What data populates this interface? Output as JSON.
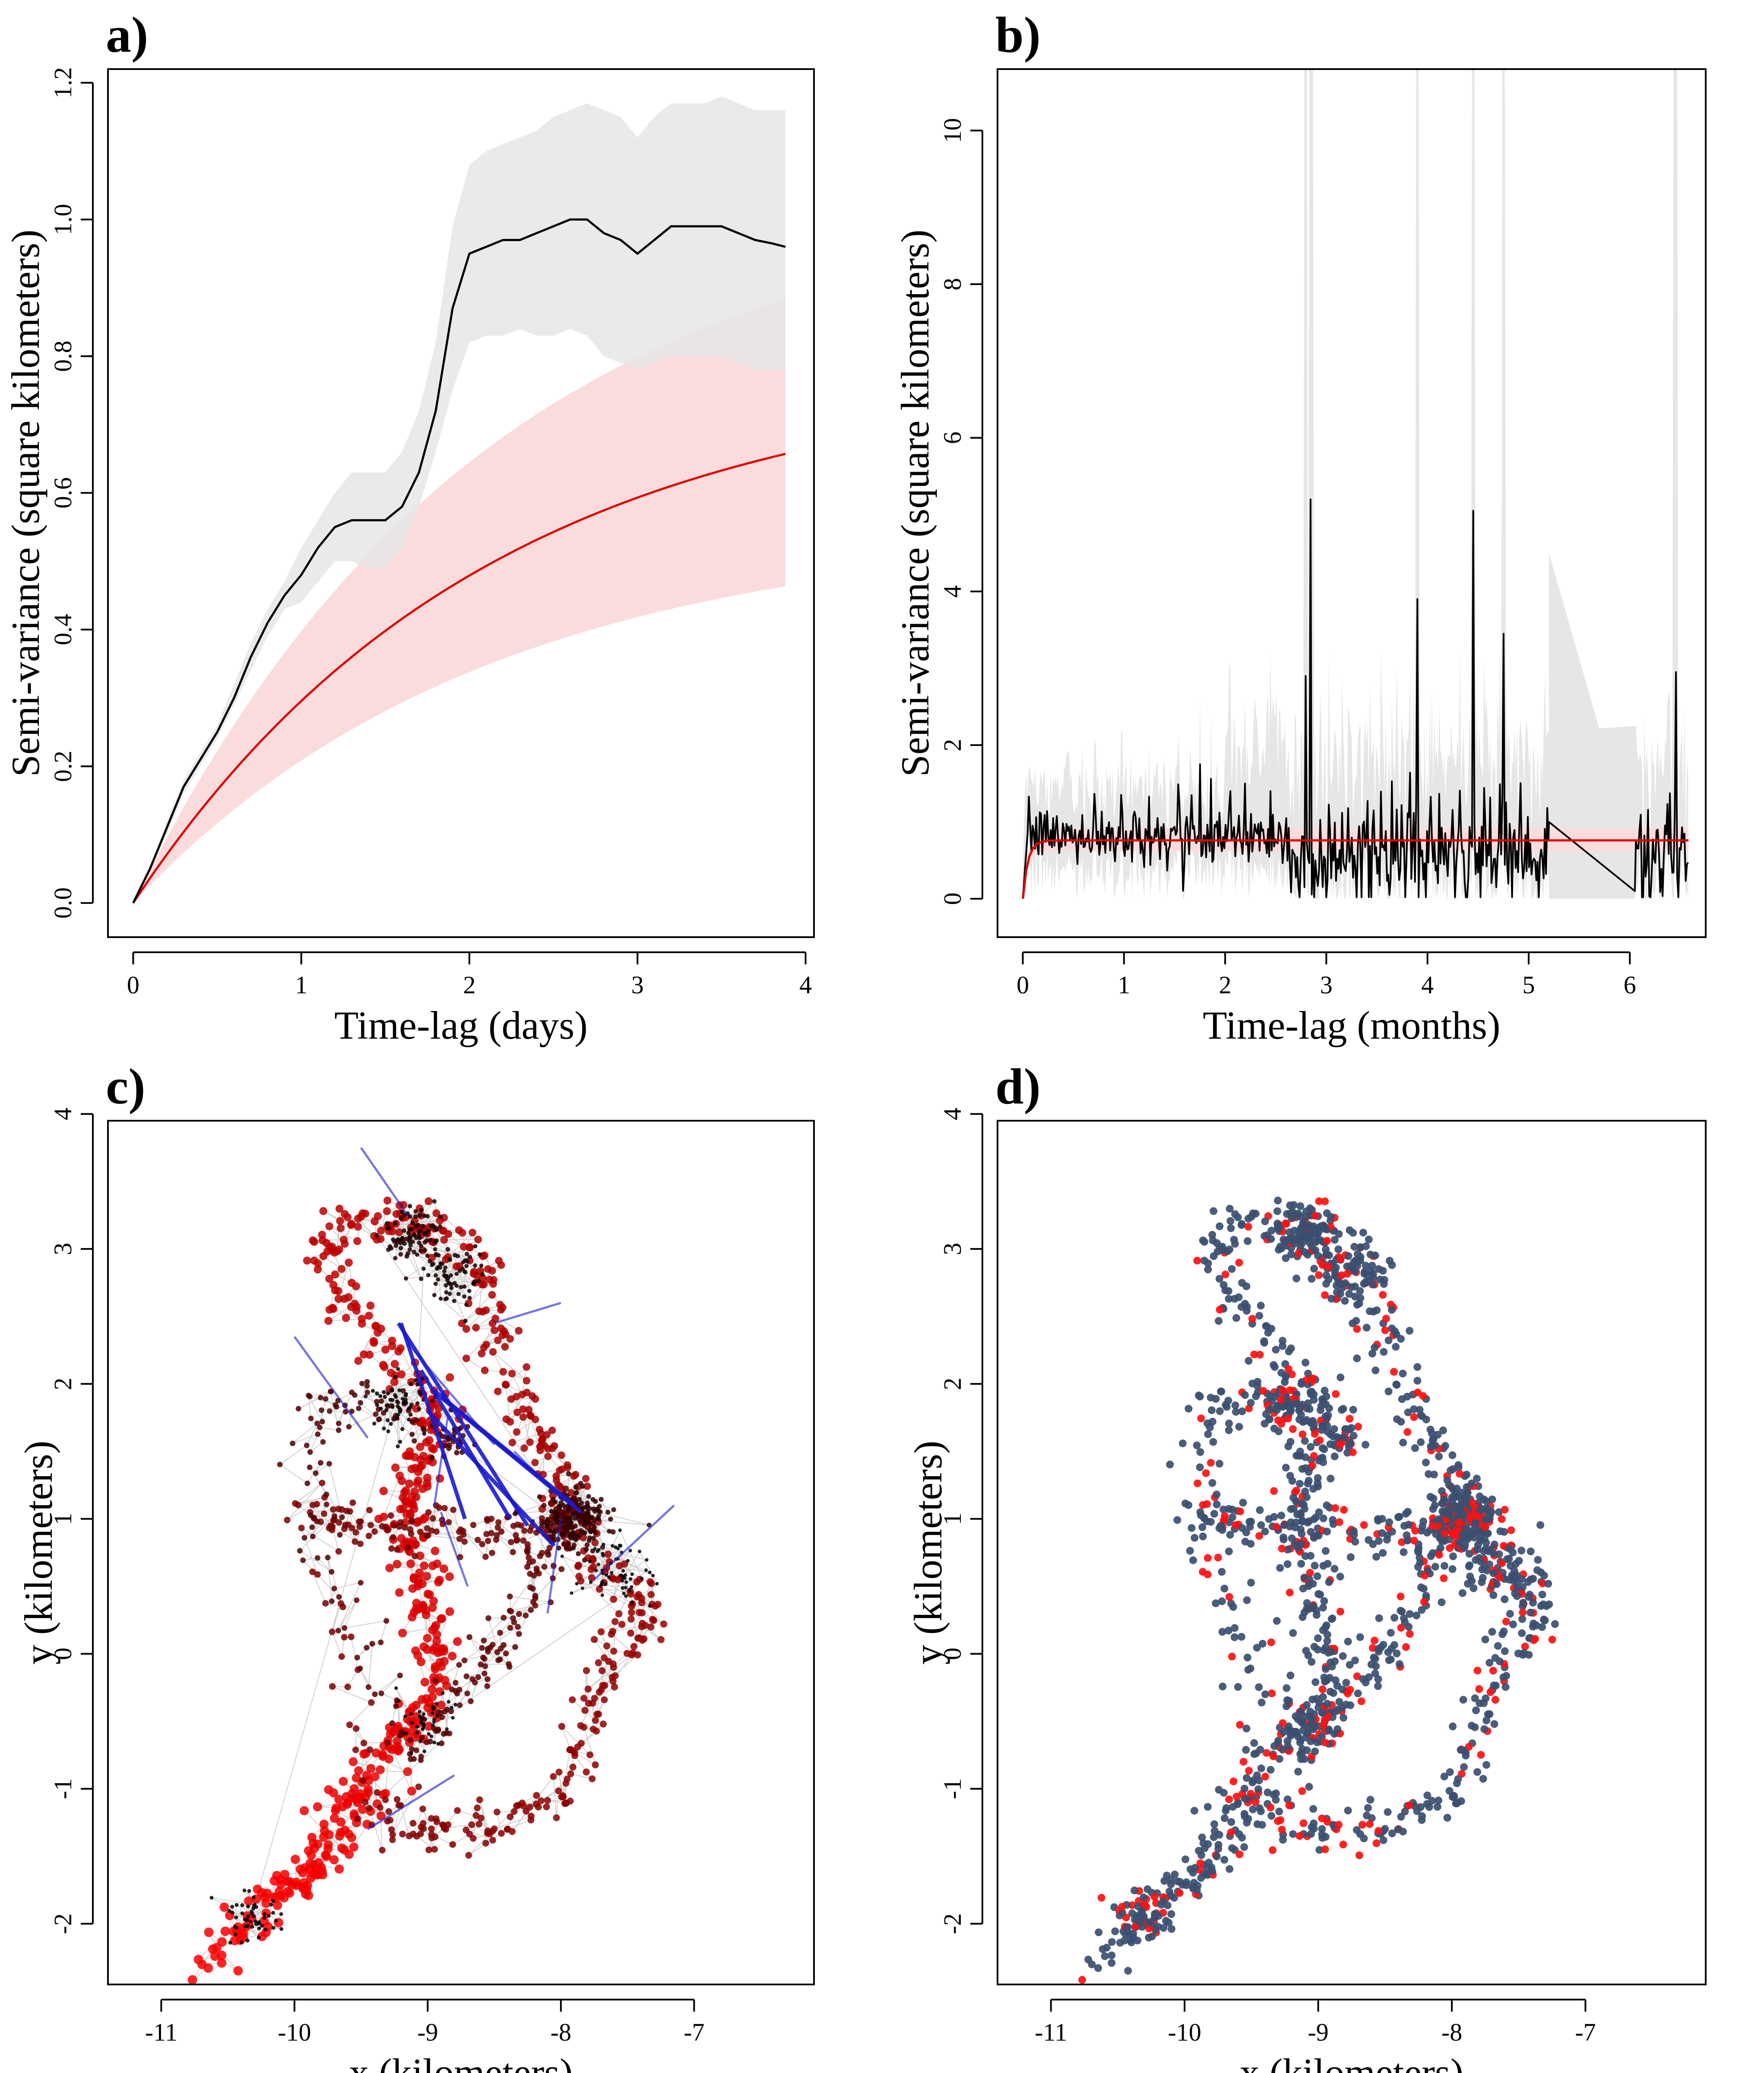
{
  "chart_data": [
    {
      "id": "a",
      "panel_label": "a)",
      "type": "line",
      "title": "",
      "xlabel": "Time-lag (days)",
      "ylabel": "Semi-variance (square kilometers)",
      "xlim": [
        -0.15,
        4.05
      ],
      "ylim": [
        -0.05,
        1.22
      ],
      "xticks": [
        0,
        1,
        2,
        3,
        4
      ],
      "yticks": [
        0.0,
        0.2,
        0.4,
        0.6,
        0.8,
        1.0,
        1.2
      ],
      "ytick_labels": [
        "0.0",
        "0.2",
        "0.4",
        "0.6",
        "0.8",
        "1.0",
        "1.2"
      ],
      "grid": false,
      "series": [
        {
          "style": "empirical",
          "color": "#000000",
          "band_color": "#e6e6e6",
          "x": [
            0,
            0.1,
            0.2,
            0.3,
            0.4,
            0.5,
            0.6,
            0.7,
            0.8,
            0.9,
            1.0,
            1.1,
            1.2,
            1.3,
            1.4,
            1.5,
            1.6,
            1.7,
            1.8,
            1.9,
            2.0,
            2.1,
            2.2,
            2.3,
            2.4,
            2.5,
            2.6,
            2.7,
            2.8,
            2.9,
            3.0,
            3.1,
            3.2,
            3.3,
            3.4,
            3.5,
            3.6,
            3.7,
            3.8,
            3.88
          ],
          "y": [
            0,
            0.05,
            0.11,
            0.17,
            0.21,
            0.25,
            0.3,
            0.36,
            0.41,
            0.45,
            0.48,
            0.52,
            0.55,
            0.56,
            0.56,
            0.56,
            0.58,
            0.63,
            0.72,
            0.87,
            0.95,
            0.96,
            0.97,
            0.97,
            0.98,
            0.99,
            1.0,
            1.0,
            0.98,
            0.97,
            0.95,
            0.97,
            0.99,
            0.99,
            0.99,
            0.99,
            0.98,
            0.97,
            0.965,
            0.96
          ],
          "lower": [
            0,
            0.05,
            0.1,
            0.16,
            0.2,
            0.24,
            0.29,
            0.34,
            0.39,
            0.43,
            0.44,
            0.47,
            0.5,
            0.5,
            0.49,
            0.49,
            0.52,
            0.58,
            0.66,
            0.75,
            0.82,
            0.83,
            0.83,
            0.84,
            0.83,
            0.83,
            0.84,
            0.83,
            0.8,
            0.79,
            0.78,
            0.79,
            0.8,
            0.8,
            0.8,
            0.8,
            0.79,
            0.78,
            0.78,
            0.78
          ],
          "upper": [
            0,
            0.05,
            0.12,
            0.18,
            0.22,
            0.26,
            0.32,
            0.38,
            0.43,
            0.47,
            0.52,
            0.56,
            0.6,
            0.63,
            0.63,
            0.63,
            0.66,
            0.72,
            0.82,
            0.99,
            1.08,
            1.1,
            1.11,
            1.12,
            1.13,
            1.15,
            1.16,
            1.17,
            1.16,
            1.15,
            1.12,
            1.15,
            1.17,
            1.17,
            1.17,
            1.18,
            1.17,
            1.16,
            1.16,
            1.16
          ]
        },
        {
          "style": "model",
          "color": "#e00000",
          "band_color": "#fbdcdc",
          "function": "exponential",
          "sill": 0.78,
          "tau": 2.1,
          "sill_lower": 0.55,
          "sill_upper": 1.05,
          "xmax": 3.88
        }
      ]
    },
    {
      "id": "b",
      "panel_label": "b)",
      "type": "line",
      "title": "",
      "xlabel": "Time-lag (months)",
      "ylabel": "Semi-variance (square kilometers)",
      "xlim": [
        -0.25,
        6.75
      ],
      "ylim": [
        -0.5,
        10.8
      ],
      "xticks": [
        0,
        1,
        2,
        3,
        4,
        5,
        6
      ],
      "yticks": [
        0,
        2,
        4,
        6,
        8,
        10
      ],
      "ytick_labels": [
        "0",
        "2",
        "4",
        "6",
        "8",
        "10"
      ],
      "grid": false,
      "series": [
        {
          "style": "empirical_noisy",
          "color": "#000000",
          "band_color": "#e6e6e6",
          "xmax": 6.58,
          "base": 0.75,
          "spikes": [
            {
              "x": 1.75,
              "y": 1.75
            },
            {
              "x": 2.05,
              "y": 1.4
            },
            {
              "x": 2.2,
              "y": 1.5
            },
            {
              "x": 2.45,
              "y": 1.4
            },
            {
              "x": 2.8,
              "y": 2.9
            },
            {
              "x": 2.85,
              "y": 5.2
            },
            {
              "x": 3.9,
              "y": 3.9
            },
            {
              "x": 4.45,
              "y": 5.05
            },
            {
              "x": 4.75,
              "y": 3.45
            },
            {
              "x": 6.45,
              "y": 2.95
            }
          ],
          "gap": {
            "x_start": 5.2,
            "y_start": 1.0,
            "x_end": 6.05,
            "y_end": 0.1
          }
        },
        {
          "style": "model",
          "color": "#e00000",
          "band_color": "#fbdcdc",
          "function": "exponential",
          "sill": 0.76,
          "tau": 0.05,
          "sill_lower": 0.62,
          "sill_upper": 0.92,
          "xmax": 6.58
        }
      ]
    },
    {
      "id": "c",
      "panel_label": "c)",
      "type": "scatter",
      "title": "",
      "xlabel": "x (kilometers)",
      "ylabel": "y (kilometers)",
      "xlim": [
        -11.4,
        -6.1
      ],
      "ylim": [
        -2.45,
        3.95
      ],
      "xticks": [
        -11,
        -10,
        -9,
        -8,
        -7
      ],
      "yticks": [
        -2,
        -1,
        0,
        1,
        2,
        3,
        4
      ],
      "xtick_labels": [
        "-11",
        "-10",
        "-9",
        "-8",
        "-7"
      ],
      "ytick_labels": [
        "-2",
        "-1",
        "0",
        "1",
        "2",
        "3",
        "4"
      ],
      "grid": false,
      "point_color_early": "#ff0000",
      "point_color_late": "#000000",
      "link_color": "#1a1acc",
      "outlier_links": [
        {
          "x1": -9.22,
          "y1": 2.45,
          "x2": -8.25,
          "y2": 0.95
        },
        {
          "x1": -9.2,
          "y1": 2.45,
          "x2": -8.72,
          "y2": 1.0
        },
        {
          "x1": -9.05,
          "y1": 2.1,
          "x2": -8.38,
          "y2": 1.0
        },
        {
          "x1": -8.95,
          "y1": 1.95,
          "x2": -7.9,
          "y2": 1.1
        },
        {
          "x1": -8.9,
          "y1": 1.9,
          "x2": -7.85,
          "y2": 1.05
        },
        {
          "x1": -9.0,
          "y1": 1.8,
          "x2": -8.05,
          "y2": 0.8
        },
        {
          "x1": -8.85,
          "y1": 1.75,
          "x2": -8.95,
          "y2": 1.1
        },
        {
          "x1": -9.15,
          "y1": 2.3,
          "x2": -8.5,
          "y2": 1.55
        },
        {
          "x1": -10.0,
          "y1": 2.35,
          "x2": -9.45,
          "y2": 1.6
        },
        {
          "x1": -8.35,
          "y1": 1.5,
          "x2": -8.0,
          "y2": 1.15
        },
        {
          "x1": -7.15,
          "y1": 1.1,
          "x2": -7.75,
          "y2": 0.55
        },
        {
          "x1": -8.0,
          "y1": 2.6,
          "x2": -8.5,
          "y2": 2.45
        },
        {
          "x1": -8.7,
          "y1": 0.5,
          "x2": -8.9,
          "y2": 1.05
        },
        {
          "x1": -8.1,
          "y1": 0.3,
          "x2": -8.0,
          "y2": 1.0
        },
        {
          "x1": -8.8,
          "y1": -0.9,
          "x2": -9.45,
          "y2": -1.3
        },
        {
          "x1": -9.5,
          "y1": 3.75,
          "x2": -9.15,
          "y2": 3.25
        }
      ]
    },
    {
      "id": "d",
      "panel_label": "d)",
      "type": "scatter",
      "title": "",
      "xlabel": "x (kilometers)",
      "ylabel": "y (kilometers)",
      "xlim": [
        -11.4,
        -6.1
      ],
      "ylim": [
        -2.45,
        3.95
      ],
      "xticks": [
        -11,
        -10,
        -9,
        -8,
        -7
      ],
      "yticks": [
        -2,
        -1,
        0,
        1,
        2,
        3,
        4
      ],
      "xtick_labels": [
        "-11",
        "-10",
        "-9",
        "-8",
        "-7"
      ],
      "ytick_labels": [
        "-2",
        "-1",
        "0",
        "1",
        "2",
        "3",
        "4"
      ],
      "grid": false,
      "point_color_main": "#3b4f70",
      "point_color_alt": "#ff1010"
    }
  ]
}
